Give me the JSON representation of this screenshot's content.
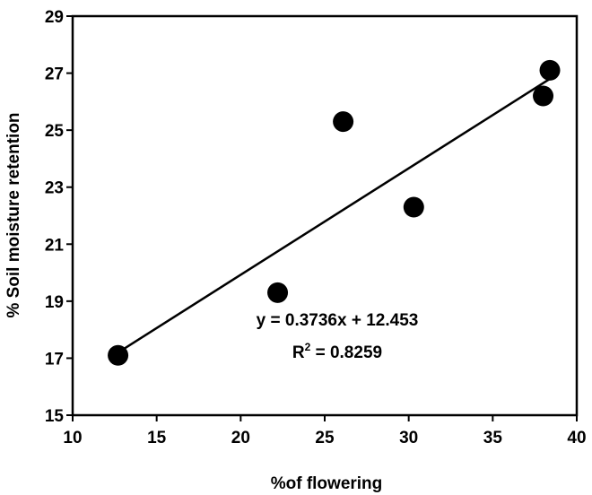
{
  "chart_data": {
    "type": "scatter",
    "title": "",
    "xlabel": "%of flowering",
    "ylabel": "% Soil moisture retention",
    "xlim": [
      10,
      40
    ],
    "ylim": [
      15,
      29
    ],
    "xticks": [
      10,
      15,
      20,
      25,
      30,
      35,
      40
    ],
    "yticks": [
      15,
      17,
      19,
      21,
      23,
      25,
      27,
      29
    ],
    "grid": false,
    "legend": "none",
    "marker_color": "#000000",
    "points": [
      {
        "x": 12.7,
        "y": 17.1
      },
      {
        "x": 22.2,
        "y": 19.3
      },
      {
        "x": 26.1,
        "y": 25.3
      },
      {
        "x": 30.3,
        "y": 22.3
      },
      {
        "x": 38.0,
        "y": 26.2
      },
      {
        "x": 38.4,
        "y": 27.1
      }
    ],
    "trendline": {
      "type": "linear",
      "slope": 0.3736,
      "intercept": 12.453,
      "x_range": [
        12.7,
        38.4
      ],
      "equation_label": "y = 0.3736x + 12.453",
      "r2_prefix": "R",
      "r2_superscript": "2",
      "r2_value": " = 0.8259"
    }
  }
}
